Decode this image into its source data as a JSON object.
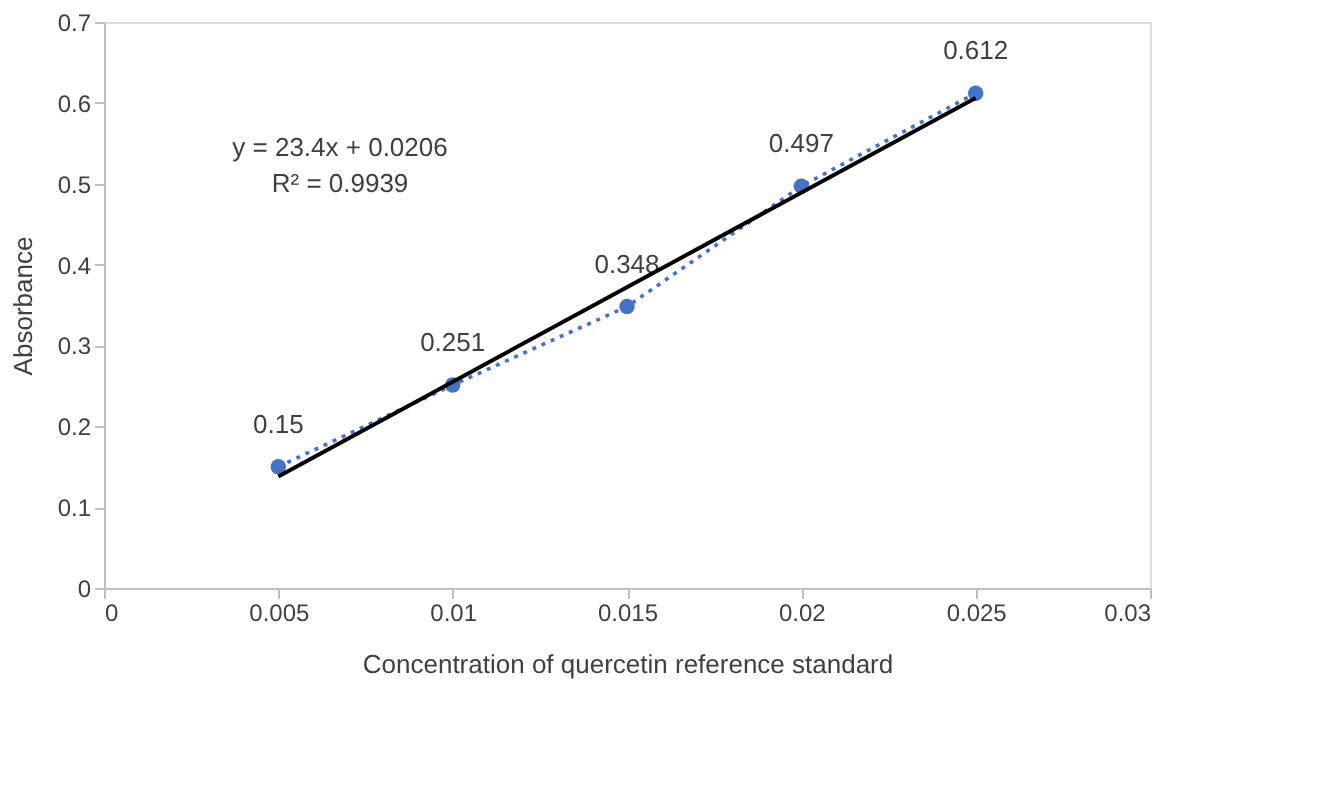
{
  "chart_data": {
    "type": "line",
    "xlabel": "Concentration of quercetin reference standard",
    "ylabel": "Absorbance",
    "x": [
      0.005,
      0.01,
      0.015,
      0.02,
      0.025
    ],
    "series": [
      {
        "color": "#4472c4",
        "marker": "circle",
        "line_style": "dotted",
        "values": [
          0.15,
          0.251,
          0.348,
          0.497,
          0.612
        ],
        "value_labels": [
          "0.15",
          "0.251",
          "0.348",
          "0.497",
          "0.612"
        ]
      },
      {
        "color": "#000000",
        "marker": "none",
        "line_style": "solid",
        "x": [
          0.005,
          0.025
        ],
        "values": [
          0.138,
          0.606
        ]
      }
    ],
    "annotations": [
      "y = 23.4x + 0.0206",
      "R² = 0.9939"
    ],
    "xlim": [
      0,
      0.03
    ],
    "xticks": [
      0,
      0.005,
      0.01,
      0.015,
      0.02,
      0.025,
      0.03
    ],
    "ylim": [
      0,
      0.7
    ],
    "yticks": [
      0,
      0.1,
      0.2,
      0.3,
      0.4,
      0.5,
      0.6,
      0.7
    ],
    "grid": false
  }
}
